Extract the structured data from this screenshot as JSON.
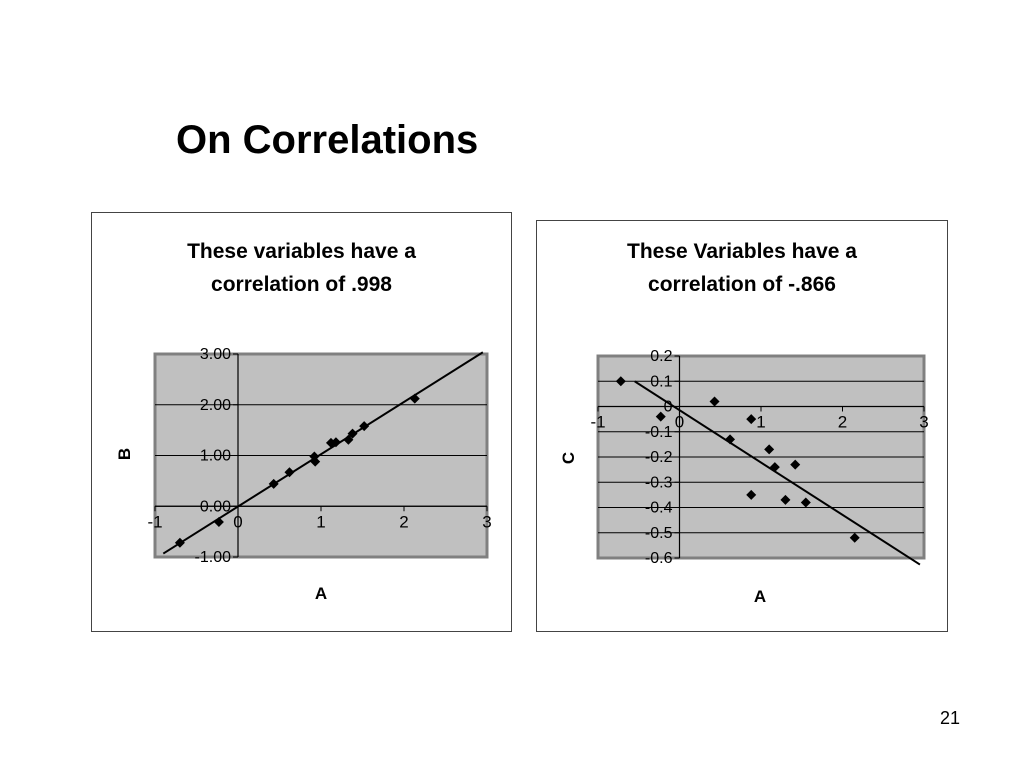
{
  "slide": {
    "title": "On Correlations",
    "page_number": "21"
  },
  "chart_data": [
    {
      "type": "scatter",
      "caption_lines": [
        "These variables have a",
        "correlation of .998"
      ],
      "xlabel": "A",
      "ylabel": "B",
      "xlim": [
        -1,
        3
      ],
      "ylim": [
        -1,
        3
      ],
      "x_ticks": [
        "-1",
        "0",
        "1",
        "2",
        "3"
      ],
      "y_ticks": [
        "3.00",
        "2.00",
        "1.00",
        "0.00",
        "-1.00"
      ],
      "y_tick_values": [
        3,
        2,
        1,
        0,
        -1
      ],
      "grid": true,
      "trendline": true,
      "points": [
        {
          "x": -0.7,
          "y": -0.72
        },
        {
          "x": -0.23,
          "y": -0.31
        },
        {
          "x": 0.43,
          "y": 0.44
        },
        {
          "x": 0.62,
          "y": 0.67
        },
        {
          "x": 0.92,
          "y": 0.98
        },
        {
          "x": 0.93,
          "y": 0.88
        },
        {
          "x": 1.12,
          "y": 1.25
        },
        {
          "x": 1.18,
          "y": 1.26
        },
        {
          "x": 1.33,
          "y": 1.31
        },
        {
          "x": 1.38,
          "y": 1.43
        },
        {
          "x": 1.52,
          "y": 1.58
        },
        {
          "x": 2.13,
          "y": 2.12
        }
      ],
      "colors": {
        "plot_bg": "#c0c0c0",
        "frame": "#808080",
        "marker": "#000000",
        "grid": "#000000"
      }
    },
    {
      "type": "scatter",
      "caption_lines": [
        "These Variables have a",
        "correlation of -.866"
      ],
      "xlabel": "A",
      "ylabel": "C",
      "xlim": [
        -1,
        3
      ],
      "ylim": [
        -0.6,
        0.2
      ],
      "x_ticks": [
        "-1",
        "0",
        "1",
        "2",
        "3"
      ],
      "y_ticks": [
        "0.2",
        "0.1",
        "0",
        "-0.1",
        "-0.2",
        "-0.3",
        "-0.4",
        "-0.5",
        "-0.6"
      ],
      "y_tick_values": [
        0.2,
        0.1,
        0,
        -0.1,
        -0.2,
        -0.3,
        -0.4,
        -0.5,
        -0.6
      ],
      "grid": true,
      "trendline": true,
      "points": [
        {
          "x": -0.72,
          "y": 0.1
        },
        {
          "x": -0.23,
          "y": -0.04
        },
        {
          "x": 0.43,
          "y": 0.02
        },
        {
          "x": 0.62,
          "y": -0.13
        },
        {
          "x": 0.88,
          "y": -0.05
        },
        {
          "x": 0.88,
          "y": -0.35
        },
        {
          "x": 1.1,
          "y": -0.17
        },
        {
          "x": 1.17,
          "y": -0.24
        },
        {
          "x": 1.3,
          "y": -0.37
        },
        {
          "x": 1.42,
          "y": -0.23
        },
        {
          "x": 1.55,
          "y": -0.38
        },
        {
          "x": 2.15,
          "y": -0.52
        }
      ],
      "colors": {
        "plot_bg": "#c0c0c0",
        "frame": "#808080",
        "marker": "#000000",
        "grid": "#000000"
      }
    }
  ]
}
